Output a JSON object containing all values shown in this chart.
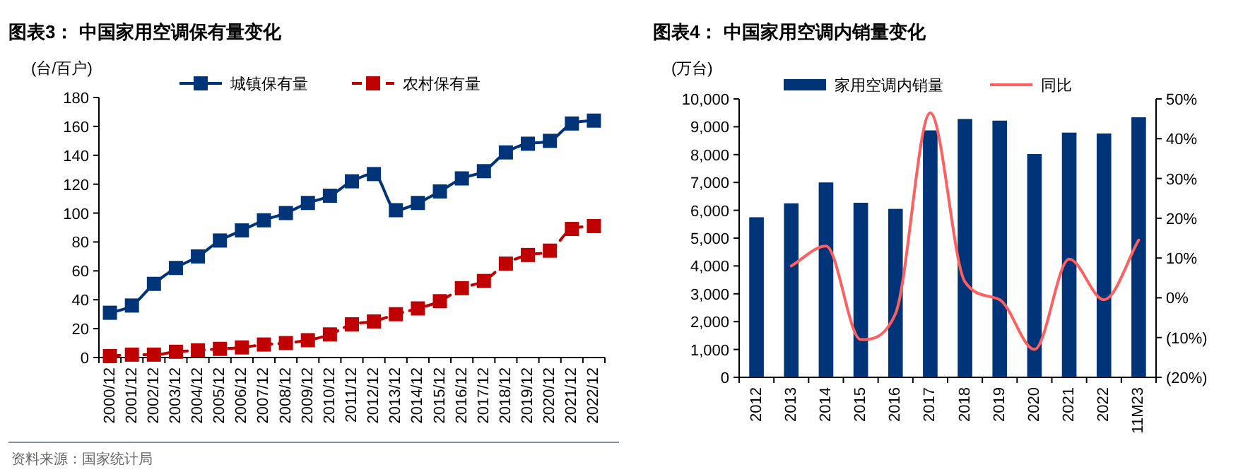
{
  "chart_data": [
    {
      "type": "line",
      "title": "图表3： 中国家用空调保有量变化",
      "ylabel": "(台/百户)",
      "categories": [
        "2000/12",
        "2001/12",
        "2002/12",
        "2003/12",
        "2004/12",
        "2005/12",
        "2006/12",
        "2007/12",
        "2008/12",
        "2009/12",
        "2010/12",
        "2011/12",
        "2012/12",
        "2013/12",
        "2014/12",
        "2015/12",
        "2016/12",
        "2017/12",
        "2018/12",
        "2019/12",
        "2020/12",
        "2021/12",
        "2022/12"
      ],
      "series": [
        {
          "name": "城镇保有量",
          "color": "#003478",
          "marker": "square",
          "line_style": "solid",
          "values": [
            31,
            36,
            51,
            62,
            70,
            81,
            88,
            95,
            100,
            107,
            112,
            122,
            127,
            102,
            107,
            115,
            124,
            129,
            142,
            148,
            150,
            162,
            164
          ]
        },
        {
          "name": "农村保有量",
          "color": "#c00000",
          "marker": "square",
          "line_style": "dashed",
          "values": [
            1,
            2,
            2,
            4,
            5,
            6,
            7,
            9,
            10,
            12,
            16,
            23,
            25,
            30,
            34,
            39,
            48,
            53,
            65,
            71,
            74,
            89,
            91
          ]
        }
      ],
      "ylim": [
        0,
        180
      ],
      "yticks": [
        0,
        20,
        40,
        60,
        80,
        100,
        120,
        140,
        160,
        180
      ],
      "legend": "top",
      "grid": false,
      "annotations": [
        "资料来源：国家统计局"
      ]
    },
    {
      "type": "bar",
      "title": "图表4： 中国家用空调内销量变化",
      "ylabel": "(万台)",
      "categories": [
        "2012",
        "2013",
        "2014",
        "2015",
        "2016",
        "2017",
        "2018",
        "2019",
        "2020",
        "2021",
        "2022",
        "11M23"
      ],
      "series": [
        {
          "name": "家用空调内销量",
          "color": "#003478",
          "values": [
            5750,
            6250,
            7000,
            6270,
            6050,
            8870,
            9280,
            9220,
            8020,
            8790,
            8760,
            9340
          ]
        },
        {
          "name": "同比",
          "type": "line",
          "axis": "y2",
          "color": "#ff5f5f",
          "marker": "none",
          "line_style": "solid",
          "values": [
            null,
            8,
            13,
            -10.5,
            -4,
            46.5,
            4,
            -0.5,
            -13,
            9.7,
            -0.5,
            14.5
          ]
        }
      ],
      "ylim": [
        0,
        10000
      ],
      "yticks": [
        0,
        {
          "value": 1000,
          "label": "1,000"
        },
        {
          "value": 2000,
          "label": "2,000"
        },
        {
          "value": 3000,
          "label": "3,000"
        },
        {
          "value": 4000,
          "label": "4,000"
        },
        {
          "value": 5000,
          "label": "5,000"
        },
        {
          "value": 6000,
          "label": "6,000"
        },
        {
          "value": 7000,
          "label": "7,000"
        },
        {
          "value": 8000,
          "label": "8,000"
        },
        {
          "value": 9000,
          "label": "9,000"
        },
        {
          "value": 10000,
          "label": "10,000"
        }
      ],
      "y2lim": [
        -20,
        50
      ],
      "y2ticks": [
        {
          "value": -20,
          "label": "(20%)"
        },
        {
          "value": -10,
          "label": "(10%)"
        },
        {
          "value": 0,
          "label": "0%"
        },
        {
          "value": 10,
          "label": "10%"
        },
        {
          "value": 20,
          "label": "20%"
        },
        {
          "value": 30,
          "label": "30%"
        },
        {
          "value": 40,
          "label": "40%"
        },
        {
          "value": 50,
          "label": "50%"
        }
      ],
      "legend": "top",
      "grid": false
    }
  ]
}
